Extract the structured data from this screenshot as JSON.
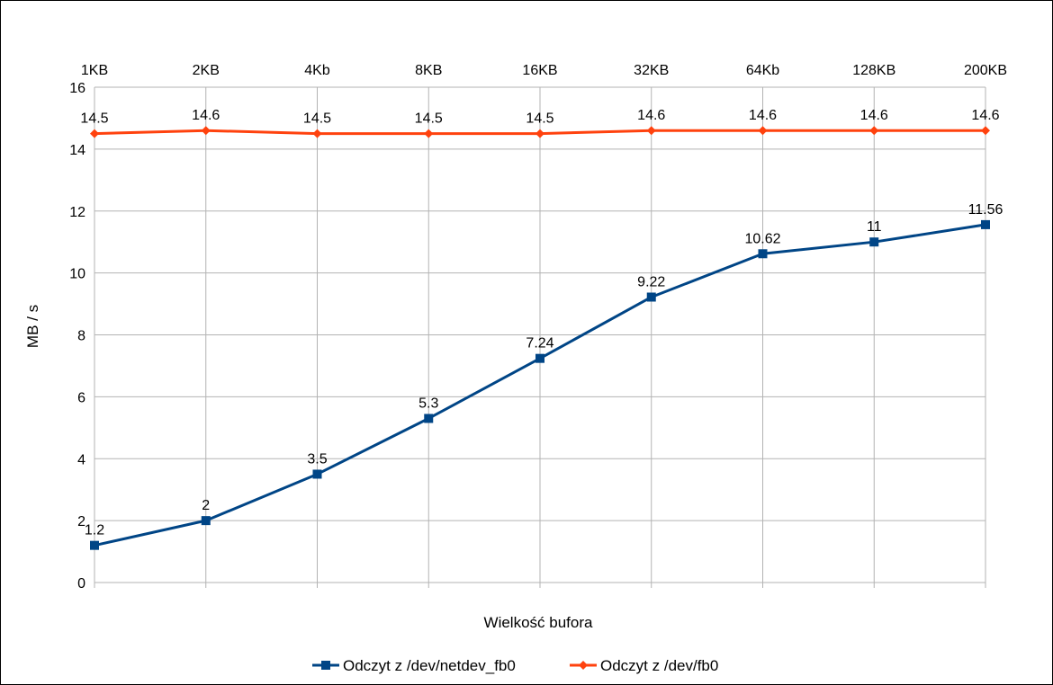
{
  "chart_data": {
    "type": "line",
    "categories": [
      "1KB",
      "2KB",
      "4Kb",
      "8KB",
      "16KB",
      "32KB",
      "64Kb",
      "128KB",
      "200KB"
    ],
    "xlabel": "Wielkość bufora",
    "ylabel": "MB / s",
    "ylim": [
      0,
      16
    ],
    "yticks": [
      0,
      2,
      4,
      6,
      8,
      10,
      12,
      14,
      16
    ],
    "grid": true,
    "category_labels_position": "top",
    "legend_position": "bottom",
    "series": [
      {
        "name": "Odczyt z /dev/netdev_fb0",
        "color": "#004586",
        "marker": "square",
        "values": [
          1.2,
          2,
          3.5,
          5.3,
          7.24,
          9.22,
          10.62,
          11,
          11.56
        ],
        "labels": [
          "1.2",
          "2",
          "3.5",
          "5.3",
          "7.24",
          "9.22",
          "10.62",
          "11",
          "11.56"
        ]
      },
      {
        "name": "Odczyt z /dev/fb0",
        "color": "#ff420e",
        "marker": "diamond",
        "values": [
          14.5,
          14.6,
          14.5,
          14.5,
          14.5,
          14.6,
          14.6,
          14.6,
          14.6
        ],
        "labels": [
          "14.5",
          "14.6",
          "14.5",
          "14.5",
          "14.5",
          "14.6",
          "14.6",
          "14.6",
          "14.6"
        ]
      }
    ]
  }
}
